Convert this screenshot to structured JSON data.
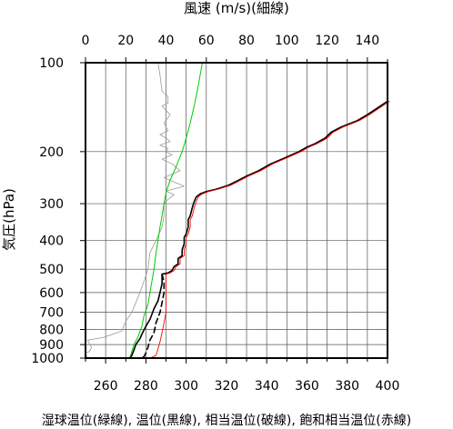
{
  "chart_data": {
    "type": "line",
    "title": "",
    "top_axis": {
      "label": "風速 (m/s)(細線)",
      "range": [
        0,
        150
      ],
      "ticks": [
        0,
        20,
        40,
        60,
        80,
        100,
        120,
        140
      ]
    },
    "bottom_axis": {
      "label": "湿球温位(緑線), 温位(黒線), 相当温位(破線), 飽和相当温位(赤線)",
      "range": [
        250,
        400
      ],
      "ticks": [
        260,
        280,
        300,
        320,
        340,
        360,
        380,
        400
      ]
    },
    "y_axis": {
      "label": "気圧(hPa)",
      "scale": "log",
      "inverted": true,
      "range": [
        100,
        1000
      ],
      "ticks": [
        100,
        200,
        300,
        400,
        500,
        600,
        700,
        800,
        900,
        1000
      ]
    },
    "grid": true,
    "series": [
      {
        "name": "風速",
        "axis": "top",
        "color": "#999999",
        "dash": "",
        "width": 0.8,
        "points": [
          [
            36,
            100
          ],
          [
            37,
            110
          ],
          [
            38,
            125
          ],
          [
            41,
            130
          ],
          [
            41,
            137
          ],
          [
            38,
            140
          ],
          [
            40,
            145
          ],
          [
            42,
            150
          ],
          [
            39,
            160
          ],
          [
            41,
            170
          ],
          [
            37,
            175
          ],
          [
            40,
            180
          ],
          [
            42,
            185
          ],
          [
            37,
            190
          ],
          [
            41,
            195
          ],
          [
            40,
            200
          ],
          [
            43,
            205
          ],
          [
            38,
            212
          ],
          [
            43,
            220
          ],
          [
            47,
            232
          ],
          [
            39,
            245
          ],
          [
            49,
            262
          ],
          [
            40,
            272
          ],
          [
            44,
            280
          ],
          [
            41,
            290
          ],
          [
            39,
            300
          ],
          [
            39,
            330
          ],
          [
            38,
            360
          ],
          [
            35,
            400
          ],
          [
            32,
            440
          ],
          [
            31,
            500
          ],
          [
            29,
            550
          ],
          [
            27,
            600
          ],
          [
            25,
            650
          ],
          [
            23,
            700
          ],
          [
            20,
            750
          ],
          [
            18,
            810
          ],
          [
            9,
            850
          ],
          [
            1,
            870
          ],
          [
            3,
            920
          ],
          [
            2,
            950
          ],
          [
            0,
            960
          ],
          [
            1,
            1000
          ]
        ]
      },
      {
        "name": "湿球温位",
        "axis": "bottom",
        "color": "#00cc00",
        "dash": "",
        "width": 1,
        "points": [
          [
            308,
            100
          ],
          [
            306,
            120
          ],
          [
            304,
            140
          ],
          [
            302,
            160
          ],
          [
            300,
            180
          ],
          [
            298,
            200
          ],
          [
            295,
            225
          ],
          [
            292,
            250
          ],
          [
            290,
            275
          ],
          [
            289,
            300
          ],
          [
            288,
            330
          ],
          [
            287,
            360
          ],
          [
            286,
            400
          ],
          [
            285,
            440
          ],
          [
            284,
            500
          ],
          [
            283,
            550
          ],
          [
            282,
            600
          ],
          [
            281,
            660
          ],
          [
            279,
            720
          ],
          [
            278,
            780
          ],
          [
            276,
            850
          ],
          [
            274,
            900
          ],
          [
            273,
            950
          ],
          [
            272,
            1000
          ]
        ]
      },
      {
        "name": "温位",
        "axis": "bottom",
        "color": "#000000",
        "dash": "",
        "width": 1.6,
        "points": [
          [
            400,
            135
          ],
          [
            390,
            150
          ],
          [
            385,
            157
          ],
          [
            377,
            165
          ],
          [
            372,
            172
          ],
          [
            369,
            180
          ],
          [
            364,
            188
          ],
          [
            360,
            193
          ],
          [
            356,
            200
          ],
          [
            349,
            210
          ],
          [
            342,
            220
          ],
          [
            336,
            232
          ],
          [
            330,
            242
          ],
          [
            326,
            250
          ],
          [
            321,
            260
          ],
          [
            315,
            268
          ],
          [
            310,
            273
          ],
          [
            307,
            278
          ],
          [
            305,
            285
          ],
          [
            304,
            295
          ],
          [
            303,
            310
          ],
          [
            302,
            330
          ],
          [
            301,
            340
          ],
          [
            301,
            360
          ],
          [
            300,
            380
          ],
          [
            299,
            390
          ],
          [
            299,
            410
          ],
          [
            298,
            430
          ],
          [
            298,
            450
          ],
          [
            296,
            460
          ],
          [
            296,
            480
          ],
          [
            294,
            490
          ],
          [
            293,
            505
          ],
          [
            291,
            515
          ],
          [
            288,
            520
          ],
          [
            288,
            540
          ],
          [
            288,
            560
          ],
          [
            287,
            600
          ],
          [
            286,
            640
          ],
          [
            284,
            680
          ],
          [
            282,
            740
          ],
          [
            280,
            780
          ],
          [
            278,
            830
          ],
          [
            277,
            860
          ],
          [
            275,
            900
          ],
          [
            274,
            940
          ],
          [
            273,
            980
          ],
          [
            272,
            1000
          ]
        ]
      },
      {
        "name": "相当温位",
        "axis": "bottom",
        "color": "#000000",
        "dash": "6,4",
        "width": 1.6,
        "points": [
          [
            288,
            520
          ],
          [
            289,
            550
          ],
          [
            289,
            600
          ],
          [
            288,
            650
          ],
          [
            287,
            700
          ],
          [
            285,
            760
          ],
          [
            284,
            820
          ],
          [
            282,
            870
          ],
          [
            281,
            920
          ],
          [
            280,
            960
          ],
          [
            279,
            990
          ],
          [
            277,
            1000
          ]
        ]
      },
      {
        "name": "飽和相当温位",
        "axis": "bottom",
        "color": "#ff0000",
        "dash": "",
        "width": 0.9,
        "points": [
          [
            401,
            135
          ],
          [
            391,
            150
          ],
          [
            386,
            157
          ],
          [
            378,
            165
          ],
          [
            373,
            172
          ],
          [
            370,
            180
          ],
          [
            365,
            188
          ],
          [
            361,
            193
          ],
          [
            357,
            200
          ],
          [
            350,
            210
          ],
          [
            343,
            220
          ],
          [
            337,
            232
          ],
          [
            331,
            242
          ],
          [
            327,
            250
          ],
          [
            322,
            260
          ],
          [
            316,
            268
          ],
          [
            311,
            273
          ],
          [
            308,
            278
          ],
          [
            306,
            285
          ],
          [
            305,
            295
          ],
          [
            304,
            310
          ],
          [
            303,
            330
          ],
          [
            302,
            340
          ],
          [
            302,
            360
          ],
          [
            301,
            380
          ],
          [
            300,
            390
          ],
          [
            300,
            410
          ],
          [
            299,
            430
          ],
          [
            299,
            450
          ],
          [
            297,
            460
          ],
          [
            297,
            480
          ],
          [
            295,
            490
          ],
          [
            294,
            505
          ],
          [
            292,
            515
          ],
          [
            290,
            520
          ],
          [
            290,
            560
          ],
          [
            290,
            600
          ],
          [
            290,
            650
          ],
          [
            290,
            700
          ],
          [
            289,
            760
          ],
          [
            288,
            820
          ],
          [
            287,
            880
          ],
          [
            286,
            930
          ],
          [
            285,
            980
          ],
          [
            282,
            1000
          ]
        ]
      }
    ]
  }
}
